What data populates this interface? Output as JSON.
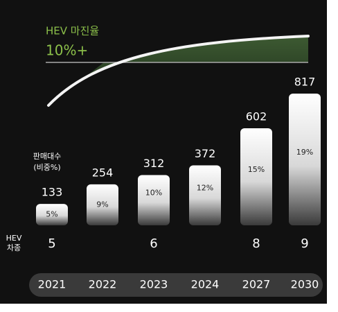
{
  "chart_data": {
    "type": "bar",
    "title": "HEV 마진율",
    "annotation": "10%+",
    "categories": [
      "2021",
      "2022",
      "2023",
      "2024",
      "2027",
      "2030"
    ],
    "values": [
      133,
      254,
      312,
      372,
      602,
      817
    ],
    "share": {
      "values": [
        5,
        9,
        10,
        12,
        15,
        19
      ],
      "value_labels": [
        "5%",
        "9%",
        "10%",
        "12%",
        "15%",
        "19%"
      ]
    },
    "models": [
      5,
      null,
      6,
      null,
      8,
      9
    ],
    "row_labels": {
      "sales": [
        "판매대수",
        "(비중%)"
      ],
      "models": [
        "HEV",
        "차종"
      ]
    },
    "title_color": "#8cc04a"
  }
}
